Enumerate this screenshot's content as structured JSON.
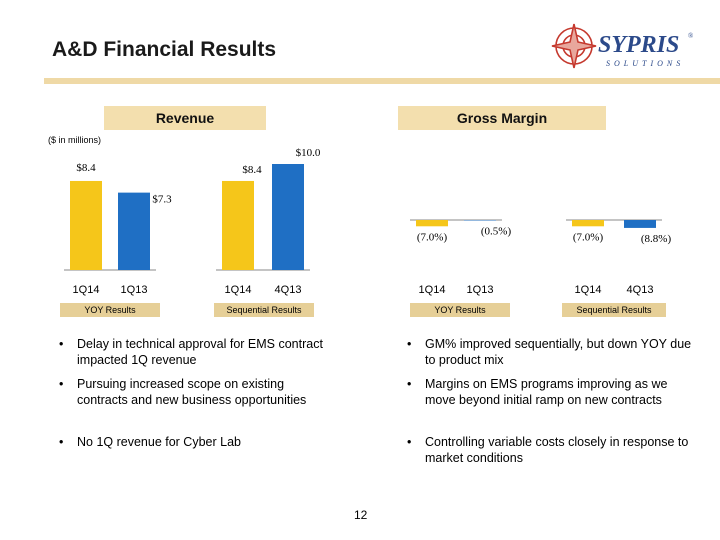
{
  "title": "A&D Financial Results",
  "logo": {
    "name": "SYPRIS",
    "reg": "®",
    "sub": "SOLUTIONS"
  },
  "revenue_header": "Revenue",
  "margin_header": "Gross Margin",
  "units_note": "($ in millions)",
  "colors": {
    "gold": "#f5c61a",
    "blue": "#1f6fc4",
    "header_bg": "#f3dfae",
    "tab_bg": "#e6cf97"
  },
  "chart_data": [
    {
      "type": "bar",
      "group": "Revenue",
      "tab": "YOY Results",
      "categories": [
        "1Q14",
        "1Q13"
      ],
      "values": [
        8.4,
        7.3
      ],
      "labels": [
        "$8.4",
        "$7.3"
      ]
    },
    {
      "type": "bar",
      "group": "Revenue",
      "tab": "Sequential Results",
      "categories": [
        "1Q14",
        "4Q13"
      ],
      "values": [
        8.4,
        10.0
      ],
      "labels": [
        "$8.4",
        "$10.0"
      ]
    },
    {
      "type": "bar",
      "group": "Gross Margin",
      "tab": "YOY Results",
      "categories": [
        "1Q14",
        "1Q13"
      ],
      "values": [
        -7.0,
        -0.5
      ],
      "labels": [
        "(7.0%)",
        "(0.5%)"
      ]
    },
    {
      "type": "bar",
      "group": "Gross Margin",
      "tab": "Sequential Results",
      "categories": [
        "1Q14",
        "4Q13"
      ],
      "values": [
        -7.0,
        -8.8
      ],
      "labels": [
        "(7.0%)",
        "(8.8%)"
      ]
    }
  ],
  "revenue_bullets": [
    "Delay in technical approval for EMS contract impacted 1Q revenue",
    "Pursuing increased scope on existing contracts and new business opportunities",
    "No 1Q revenue for Cyber Lab"
  ],
  "margin_bullets": [
    "GM% improved sequentially, but down YOY due to product mix",
    "Margins on EMS programs improving as we move beyond initial ramp on new contracts",
    "Controlling variable costs closely in response to market conditions"
  ],
  "page_number": "12"
}
